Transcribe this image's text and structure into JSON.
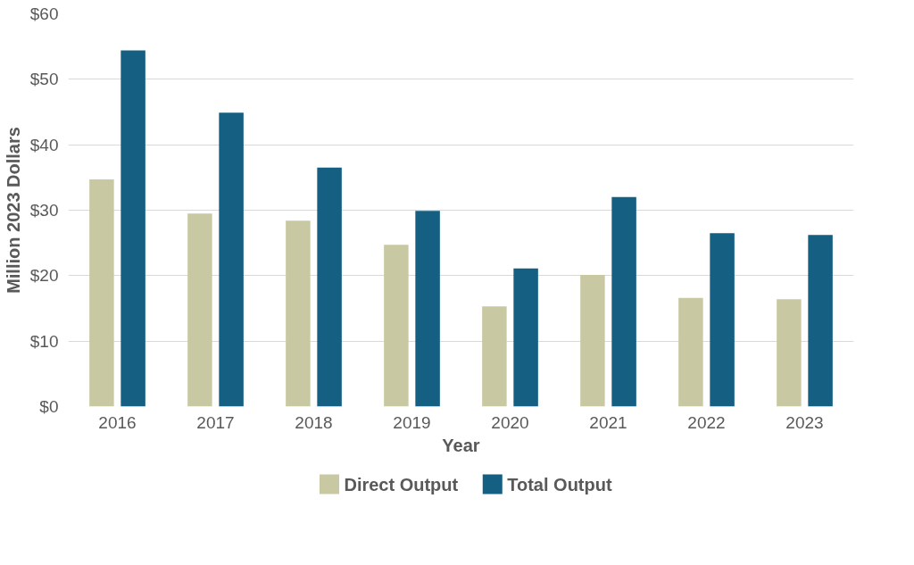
{
  "chart_data": {
    "type": "bar",
    "xlabel": "Year",
    "ylabel": "Million 2023 Dollars",
    "categories": [
      "2016",
      "2017",
      "2018",
      "2019",
      "2020",
      "2021",
      "2022",
      "2023"
    ],
    "series": [
      {
        "name": "Direct Output",
        "color": "#c8c9a3",
        "values": [
          34.7,
          29.5,
          28.4,
          24.7,
          15.3,
          20.1,
          16.6,
          16.4
        ]
      },
      {
        "name": "Total Output",
        "color": "#155f82",
        "values": [
          54.4,
          44.9,
          36.5,
          29.9,
          21.1,
          32.0,
          26.5,
          26.2
        ]
      }
    ],
    "ylim": [
      0,
      60
    ],
    "yticks": [
      {
        "value": 0,
        "label": "$0"
      },
      {
        "value": 10,
        "label": "$10"
      },
      {
        "value": 20,
        "label": "$20"
      },
      {
        "value": 30,
        "label": "$30"
      },
      {
        "value": 40,
        "label": "$40"
      },
      {
        "value": 50,
        "label": "$50"
      },
      {
        "value": 60,
        "label": "$60"
      }
    ],
    "grid": "y",
    "legend": "bottom"
  }
}
